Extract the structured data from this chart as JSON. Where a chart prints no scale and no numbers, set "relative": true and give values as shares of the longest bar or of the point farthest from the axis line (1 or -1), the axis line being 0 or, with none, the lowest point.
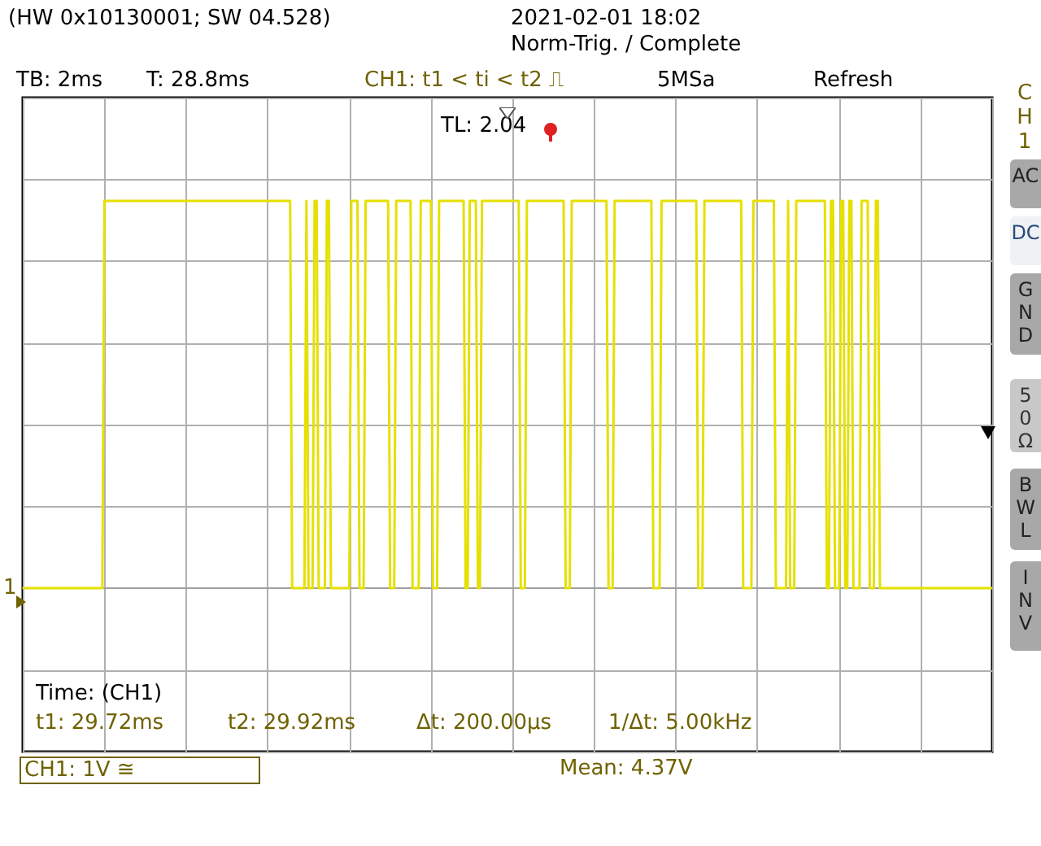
{
  "chart_data": {
    "type": "line",
    "relative": true,
    "color": "#e6e000",
    "categories": [
      null,
      null,
      null,
      null,
      null,
      null,
      null,
      null,
      null,
      null,
      null,
      null,
      null,
      null,
      null,
      null,
      null,
      null,
      null,
      null,
      null,
      null,
      null,
      null,
      null,
      null,
      null,
      null,
      null,
      null,
      null,
      null,
      null,
      null,
      null,
      null,
      null,
      null,
      null,
      null,
      null,
      null,
      null,
      null,
      null,
      null,
      null,
      null,
      null,
      null,
      null,
      null,
      null,
      null,
      null,
      null,
      null,
      null,
      null,
      null,
      null,
      null,
      null,
      null,
      null,
      null,
      null,
      null,
      null,
      null,
      null,
      null,
      null,
      null,
      null,
      null,
      null,
      null,
      null,
      null,
      null,
      null,
      null,
      null,
      null,
      null,
      null,
      null,
      null,
      null,
      null,
      null,
      null,
      null,
      null,
      null,
      null,
      null,
      null,
      null,
      null,
      null,
      null,
      null,
      null,
      null,
      null,
      null,
      null,
      null,
      null,
      null,
      null,
      null,
      null,
      null,
      null,
      null,
      null,
      null,
      null,
      null,
      null,
      null,
      null,
      null,
      null,
      null,
      null,
      null,
      null,
      null,
      null,
      null,
      null,
      null,
      null,
      null,
      null,
      null,
      null,
      null,
      null,
      null,
      null,
      null,
      null,
      null,
      null,
      null,
      null,
      null,
      null,
      null,
      null,
      null,
      null,
      null,
      null,
      null,
      null,
      null,
      null,
      null,
      null,
      null,
      null,
      null,
      null,
      null,
      null,
      null,
      null,
      null,
      null,
      null,
      null,
      null,
      null,
      null,
      null,
      null,
      null,
      null,
      null,
      null,
      null,
      null,
      null,
      null,
      null,
      null,
      null,
      null,
      null,
      null,
      null,
      null,
      null,
      null,
      null,
      null,
      null,
      null,
      null,
      null,
      null,
      null,
      null,
      null,
      null,
      null,
      null,
      null,
      null,
      null,
      null,
      null,
      null,
      null,
      null,
      null,
      null,
      null,
      null,
      null,
      null,
      null,
      null,
      null,
      null,
      null,
      null,
      null,
      null,
      null,
      null,
      null,
      null,
      null,
      null,
      null,
      null,
      null,
      null,
      null,
      null,
      null,
      null,
      null,
      null,
      null,
      null,
      null,
      null,
      null,
      null,
      null,
      null,
      null,
      null,
      null,
      null,
      null,
      null,
      null,
      null,
      null,
      null,
      null,
      null,
      null,
      null,
      null,
      null,
      null,
      null,
      null,
      null,
      null,
      null,
      null,
      null,
      null,
      null,
      null,
      null,
      null,
      null,
      null,
      null,
      null,
      null,
      null,
      null,
      null,
      null,
      null,
      null,
      null,
      null,
      null,
      null,
      null,
      null,
      null,
      null,
      null,
      null,
      null,
      null,
      null,
      null,
      null,
      null,
      null,
      null,
      null,
      null,
      null,
      null,
      null,
      null,
      null,
      null,
      null,
      null,
      null,
      null,
      null,
      null,
      null,
      null,
      null,
      null,
      null,
      null,
      null,
      null,
      null,
      null,
      null,
      null,
      null,
      null,
      null,
      null,
      null,
      null,
      null,
      null,
      null,
      null,
      null,
      null,
      null,
      null,
      null,
      null,
      null,
      null,
      null,
      null,
      null,
      null,
      null,
      null,
      null,
      null,
      null,
      null,
      null,
      null,
      null,
      null,
      null,
      null,
      null,
      null,
      null,
      null,
      null,
      null,
      null,
      null,
      null,
      null,
      null,
      null,
      null,
      null,
      null,
      null,
      null,
      null,
      null,
      null,
      null,
      null,
      null,
      null,
      null,
      null,
      null,
      null,
      null,
      null,
      null,
      null,
      null,
      null,
      null,
      null,
      null,
      null,
      null,
      null,
      null,
      null,
      null,
      null,
      null,
      null,
      null,
      null,
      null,
      null,
      null,
      null,
      null,
      null,
      null,
      null,
      null,
      null,
      null,
      null,
      null,
      null,
      null,
      null,
      null,
      null,
      null,
      null,
      null,
      null,
      null,
      null,
      null,
      null,
      null,
      null,
      null,
      null,
      null,
      null,
      null,
      null,
      null,
      null,
      null,
      null,
      null,
      null,
      null,
      null,
      null,
      null,
      null,
      null,
      null,
      null,
      null,
      null,
      null
    ],
    "values": [
      0,
      0,
      0,
      0,
      0,
      0,
      0,
      0,
      0,
      0,
      0,
      0,
      0,
      0,
      0,
      0,
      0,
      0,
      0,
      0,
      0,
      0,
      0,
      0,
      0,
      0,
      0,
      0,
      0,
      0,
      0,
      0,
      0,
      0,
      0,
      0,
      0,
      0,
      0,
      0,
      1,
      1,
      1,
      1,
      1,
      1,
      1,
      1,
      1,
      1,
      1,
      1,
      1,
      1,
      1,
      1,
      1,
      1,
      1,
      1,
      1,
      1,
      1,
      1,
      1,
      1,
      1,
      1,
      1,
      1,
      1,
      1,
      1,
      1,
      1,
      1,
      1,
      1,
      1,
      1,
      1,
      1,
      1,
      1,
      1,
      1,
      1,
      1,
      1,
      1,
      1,
      1,
      1,
      1,
      1,
      1,
      1,
      1,
      1,
      1,
      1,
      1,
      1,
      1,
      1,
      1,
      1,
      1,
      1,
      1,
      1,
      1,
      1,
      1,
      1,
      1,
      1,
      1,
      1,
      1,
      1,
      1,
      1,
      1,
      1,
      1,
      1,
      1,
      1,
      1,
      1,
      1,
      0,
      0,
      0,
      0,
      0,
      0,
      0,
      1,
      0,
      0,
      0,
      1,
      1,
      0,
      0,
      0,
      0,
      1,
      1,
      0,
      0,
      0,
      0,
      0,
      0,
      0,
      0,
      0,
      0,
      1,
      1,
      1,
      1,
      0,
      0,
      0,
      1,
      1,
      1,
      1,
      1,
      1,
      1,
      1,
      1,
      1,
      1,
      1,
      0,
      0,
      0,
      1,
      1,
      1,
      1,
      1,
      1,
      1,
      1,
      0,
      0,
      0,
      0,
      1,
      1,
      1,
      1,
      1,
      1,
      0,
      0,
      0,
      1,
      1,
      1,
      1,
      1,
      1,
      1,
      1,
      1,
      1,
      1,
      1,
      1,
      0,
      0,
      1,
      1,
      1,
      1,
      0,
      0,
      1,
      1,
      1,
      1,
      1,
      1,
      1,
      1,
      1,
      1,
      1,
      1,
      1,
      1,
      1,
      1,
      1,
      1,
      1,
      0,
      0,
      0,
      1,
      1,
      1,
      1,
      1,
      1,
      1,
      1,
      1,
      1,
      1,
      1,
      1,
      1,
      1,
      1,
      1,
      1,
      1,
      0,
      0,
      0,
      1,
      1,
      1,
      1,
      1,
      1,
      1,
      1,
      1,
      1,
      1,
      1,
      1,
      1,
      1,
      1,
      1,
      1,
      0,
      0,
      0,
      1,
      1,
      1,
      1,
      1,
      1,
      1,
      1,
      1,
      1,
      1,
      1,
      1,
      1,
      1,
      1,
      1,
      1,
      1,
      0,
      0,
      0,
      0,
      1,
      1,
      1,
      1,
      1,
      1,
      1,
      1,
      1,
      1,
      1,
      1,
      1,
      1,
      1,
      1,
      1,
      1,
      0,
      0,
      0,
      1,
      1,
      1,
      1,
      1,
      1,
      1,
      1,
      1,
      1,
      1,
      1,
      1,
      1,
      1,
      1,
      1,
      1,
      1,
      0,
      0,
      0,
      0,
      0,
      1,
      1,
      1,
      1,
      1,
      1,
      1,
      1,
      1,
      1,
      1,
      0,
      0,
      0,
      0,
      0,
      0,
      1,
      0,
      0,
      0,
      1,
      1,
      1,
      1,
      1,
      1,
      1,
      1,
      1,
      1,
      1,
      1,
      1,
      1,
      1,
      0,
      0,
      1,
      1,
      0,
      0,
      0,
      1,
      1,
      0,
      0,
      1,
      1,
      0,
      0,
      0,
      0,
      1,
      1,
      1,
      1,
      0,
      0,
      0,
      1,
      1,
      0,
      0,
      0,
      0,
      0,
      0,
      0,
      0,
      0,
      0,
      0,
      0,
      0,
      0,
      0,
      0,
      0,
      0,
      0,
      0,
      0,
      0,
      0,
      0,
      0,
      0,
      0,
      0,
      0,
      0,
      0,
      0,
      0,
      0,
      0,
      0,
      0,
      0,
      0,
      0,
      0,
      0,
      0,
      0,
      0,
      0,
      0,
      0,
      0,
      0,
      0,
      0,
      0,
      0,
      0,
      0
    ],
    "grid": true,
    "marker": "none",
    "line_style": "solid",
    "annotations": [
      "(HW 0x10130001; SW 04.528)",
      "2021-02-01 18:02",
      "Norm-Trig. / Complete",
      "TB: 2ms",
      "T: 28.8ms",
      "CH1: t1 < ti < t2 ⎍",
      "5MSa",
      "Refresh",
      "TL: 2.04",
      "Time: (CH1)",
      "t1: 29.72ms",
      "t2: 29.92ms",
      "Δt: 200.00µs",
      "1/Δt: 5.00kHz",
      "CH1: 1V ≅",
      "Mean: 4.37V",
      "1",
      "CH1",
      "AC",
      "DC",
      "GND",
      "50Ω",
      "BWL",
      "INV"
    ]
  }
}
